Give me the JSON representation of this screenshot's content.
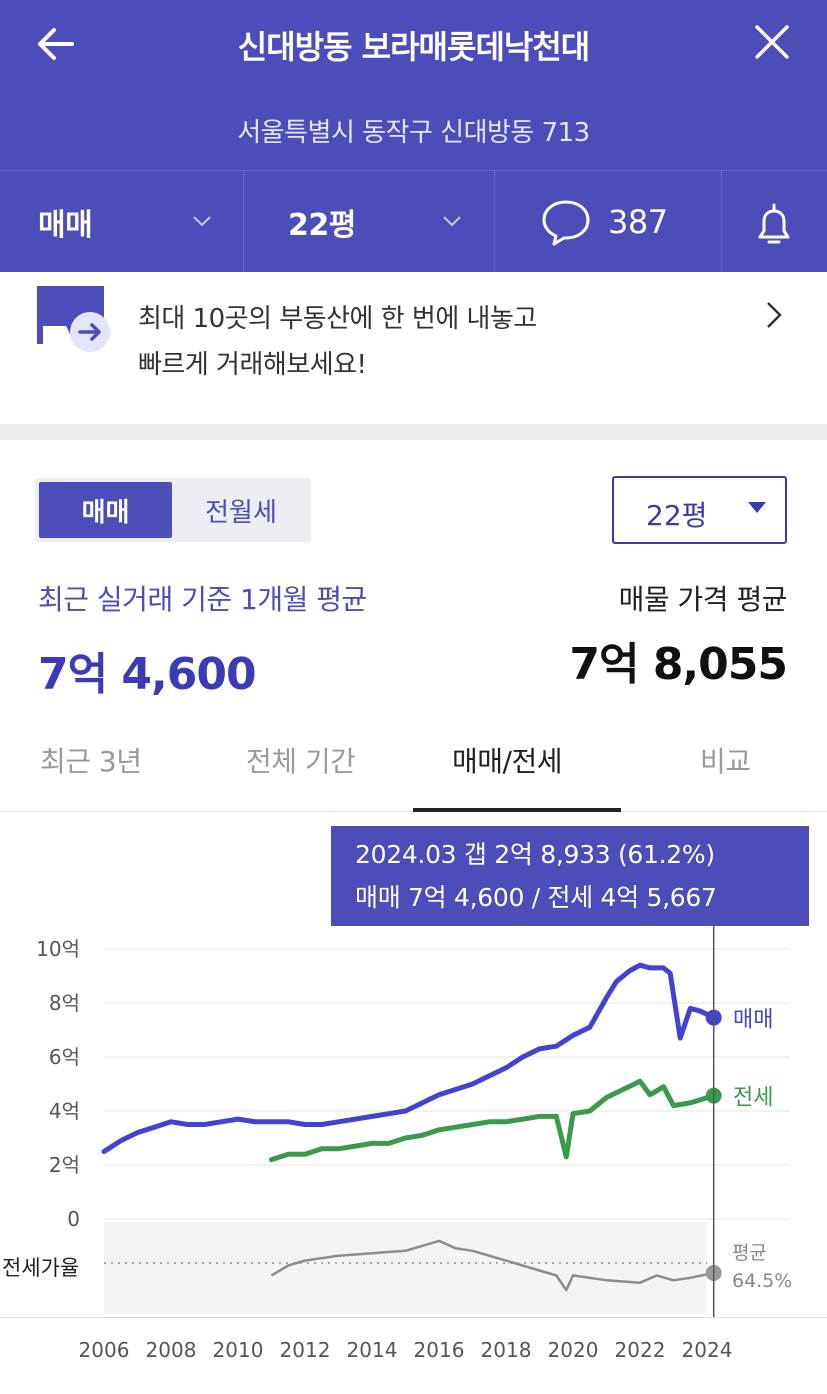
{
  "header": {
    "title": "신대방동 보라매롯데낙천대",
    "address": "서울특별시 동작구 신대방동 713"
  },
  "filters": {
    "trade_type": "매매",
    "size": "22평",
    "comment_count": "387"
  },
  "banner": {
    "line1": "최대 10곳의 부동산에 한 번에 내놓고",
    "line2": "빠르게 거래해보세요!"
  },
  "toggle": {
    "on": "매매",
    "off": "전월세"
  },
  "size_select": "22평",
  "summary": {
    "recent_label": "최근 실거래 기준 1개월 평균",
    "recent_value": "7억 4,600",
    "listing_label": "매물 가격 평균",
    "listing_value": "7억 8,055"
  },
  "tabs": [
    "최근 3년",
    "전체 기간",
    "매매/전세",
    "비교"
  ],
  "active_tab": 2,
  "tooltip": {
    "line1": "2024.03  갭 2억 8,933 (61.2%)",
    "line2": "매매 7억 4,600 / 전세 4억 5,667"
  },
  "colors": {
    "brand": "#4d4cb8",
    "sale_line": "#4442d2",
    "lease_line": "#3a9a4c",
    "ratio_line": "#8c8c8c"
  },
  "chart_data": {
    "type": "line",
    "y_unit": "억",
    "yticks": [
      "10억",
      "8억",
      "6억",
      "4억",
      "2억",
      "0"
    ],
    "ylim": [
      0,
      10
    ],
    "xticks": [
      "2006",
      "2008",
      "2010",
      "2012",
      "2014",
      "2016",
      "2018",
      "2020",
      "2022",
      "2024"
    ],
    "series": [
      {
        "name": "매매",
        "x": [
          2006.0,
          2006.5,
          2007.0,
          2007.5,
          2008.0,
          2008.5,
          2009.0,
          2009.5,
          2010.0,
          2010.5,
          2011.0,
          2011.5,
          2012.0,
          2012.5,
          2013.0,
          2013.5,
          2014.0,
          2014.5,
          2015.0,
          2015.5,
          2016.0,
          2016.5,
          2017.0,
          2017.5,
          2018.0,
          2018.5,
          2019.0,
          2019.5,
          2020.0,
          2020.5,
          2021.0,
          2021.3,
          2021.7,
          2022.0,
          2022.3,
          2022.7,
          2022.9,
          2023.2,
          2023.5,
          2023.8,
          2024.2
        ],
        "values": [
          2.5,
          2.9,
          3.2,
          3.4,
          3.6,
          3.5,
          3.5,
          3.6,
          3.7,
          3.6,
          3.6,
          3.6,
          3.5,
          3.5,
          3.6,
          3.7,
          3.8,
          3.9,
          4.0,
          4.3,
          4.6,
          4.8,
          5.0,
          5.3,
          5.6,
          6.0,
          6.3,
          6.4,
          6.8,
          7.1,
          8.2,
          8.8,
          9.2,
          9.4,
          9.3,
          9.3,
          9.1,
          6.7,
          7.8,
          7.7,
          7.46
        ]
      },
      {
        "name": "전세",
        "x": [
          2011.0,
          2011.5,
          2012.0,
          2012.5,
          2013.0,
          2013.5,
          2014.0,
          2014.5,
          2015.0,
          2015.5,
          2016.0,
          2016.5,
          2017.0,
          2017.5,
          2018.0,
          2018.5,
          2019.0,
          2019.5,
          2019.8,
          2020.0,
          2020.5,
          2021.0,
          2021.5,
          2022.0,
          2022.3,
          2022.7,
          2023.0,
          2023.5,
          2024.2
        ],
        "values": [
          2.2,
          2.4,
          2.4,
          2.6,
          2.6,
          2.7,
          2.8,
          2.8,
          3.0,
          3.1,
          3.3,
          3.4,
          3.5,
          3.6,
          3.6,
          3.7,
          3.8,
          3.8,
          2.3,
          3.9,
          4.0,
          4.5,
          4.8,
          5.1,
          4.6,
          4.9,
          4.2,
          4.3,
          4.57
        ]
      }
    ],
    "ratio": {
      "label": "전세가율",
      "avg_label": "평균",
      "avg_value": "64.5%",
      "x": [
        2011.0,
        2011.5,
        2012.0,
        2013.0,
        2014.0,
        2015.0,
        2016.0,
        2016.5,
        2017.0,
        2018.0,
        2019.0,
        2019.5,
        2019.8,
        2020.0,
        2021.0,
        2022.0,
        2022.5,
        2023.0,
        2023.5,
        2024.2
      ],
      "values": [
        60,
        64,
        66,
        68,
        69,
        70,
        74,
        71,
        70,
        66,
        62,
        60,
        54,
        60,
        58,
        57,
        60,
        58,
        59,
        61
      ]
    },
    "highlight": {
      "x": 2024.2,
      "label": "2024.03"
    }
  }
}
